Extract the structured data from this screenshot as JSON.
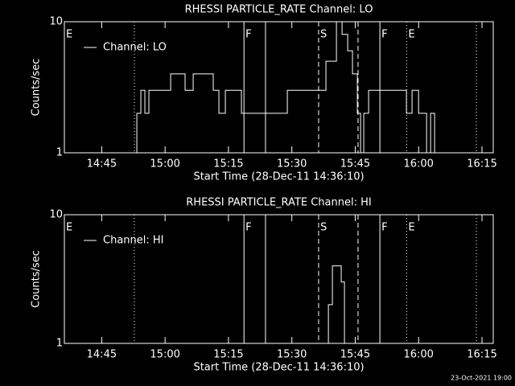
{
  "chart_data": [
    {
      "type": "line",
      "title": "RHESSI PARTICLE_RATE Channel: LO",
      "ylabel": "Counts/sec",
      "xlabel": "Start Time (28-Dec-11 14:36:10)",
      "log_y": true,
      "ylim": [
        1,
        10
      ],
      "yticks": [
        1,
        10
      ],
      "xlim": [
        "14:36:10",
        "16:17:40"
      ],
      "xticks": [
        "14:45",
        "15:00",
        "15:15",
        "15:30",
        "15:45",
        "16:00",
        "16:15"
      ],
      "legend": "upper left",
      "markers": [
        {
          "time": "14:52:44",
          "style": "dotted"
        },
        {
          "time": "15:18:40",
          "style": "solid"
        },
        {
          "time": "15:23:46",
          "style": "solid"
        },
        {
          "time": "15:36:20",
          "style": "dashed"
        },
        {
          "time": "15:45:40",
          "style": "dashed"
        },
        {
          "time": "15:50:50",
          "style": "solid"
        },
        {
          "time": "15:57:10",
          "style": "dotted"
        },
        {
          "time": "16:13:40",
          "style": "dotted"
        }
      ],
      "marker_labels": [
        {
          "time": "14:36:10",
          "text": "E"
        },
        {
          "time": "15:18:40",
          "text": "F"
        },
        {
          "time": "15:36:20",
          "text": "S"
        },
        {
          "time": "15:50:50",
          "text": "F"
        },
        {
          "time": "15:57:10",
          "text": "E"
        }
      ],
      "x": [
        "14:52:44",
        "14:53:19",
        "14:54:16",
        "14:55:13",
        "14:56:10",
        "14:59:01",
        "15:01:19",
        "15:04:44",
        "15:06:39",
        "15:10:27",
        "15:11:24",
        "15:12:44",
        "15:14:16",
        "15:18:04",
        "15:27:36",
        "15:28:56",
        "15:36:10",
        "15:38:04",
        "15:40:33",
        "15:41:53",
        "15:43:13",
        "15:44:21",
        "15:45:30",
        "15:46:16",
        "15:47:01",
        "15:48:10",
        "15:50:27",
        "15:56:10",
        "15:57:07",
        "15:58:27",
        "15:59:59",
        "16:01:53",
        "16:02:50",
        "16:03:47"
      ],
      "series": [
        {
          "name": "Channel: LO",
          "color": "#ffffff",
          "values": [
            1,
            2,
            3,
            2,
            3,
            3,
            4,
            3,
            4,
            4,
            3,
            2,
            3,
            2,
            2,
            3,
            3,
            5,
            10,
            8,
            6,
            4,
            2,
            1,
            2,
            3,
            3,
            3,
            2,
            3,
            2,
            1,
            2,
            1
          ]
        }
      ]
    },
    {
      "type": "line",
      "title": "RHESSI PARTICLE_RATE Channel: HI",
      "ylabel": "Counts/sec",
      "xlabel": "Start Time (28-Dec-11 14:36:10)",
      "log_y": true,
      "ylim": [
        1,
        10
      ],
      "yticks": [
        1,
        10
      ],
      "xlim": [
        "14:36:10",
        "16:17:40"
      ],
      "xticks": [
        "14:45",
        "15:00",
        "15:15",
        "15:30",
        "15:45",
        "16:00",
        "16:15"
      ],
      "legend": "upper left",
      "markers": [
        {
          "time": "14:52:44",
          "style": "dotted"
        },
        {
          "time": "15:18:40",
          "style": "solid"
        },
        {
          "time": "15:23:46",
          "style": "solid"
        },
        {
          "time": "15:36:20",
          "style": "dashed"
        },
        {
          "time": "15:45:40",
          "style": "dashed"
        },
        {
          "time": "15:50:50",
          "style": "solid"
        },
        {
          "time": "15:57:10",
          "style": "dotted"
        },
        {
          "time": "16:13:40",
          "style": "dotted"
        }
      ],
      "marker_labels": [
        {
          "time": "14:36:10",
          "text": "E"
        },
        {
          "time": "15:18:40",
          "text": "F"
        },
        {
          "time": "15:36:20",
          "text": "S"
        },
        {
          "time": "15:50:50",
          "text": "F"
        },
        {
          "time": "15:57:10",
          "text": "E"
        }
      ],
      "x": [
        "15:38:04",
        "15:38:39",
        "15:39:36",
        "15:40:56",
        "15:41:41",
        "15:42:27"
      ],
      "series": [
        {
          "name": "Channel: HI",
          "color": "#ffffff",
          "values": [
            1,
            2,
            4,
            4,
            3,
            1
          ]
        }
      ]
    }
  ],
  "footer": "23-Oct-2021 19:00"
}
